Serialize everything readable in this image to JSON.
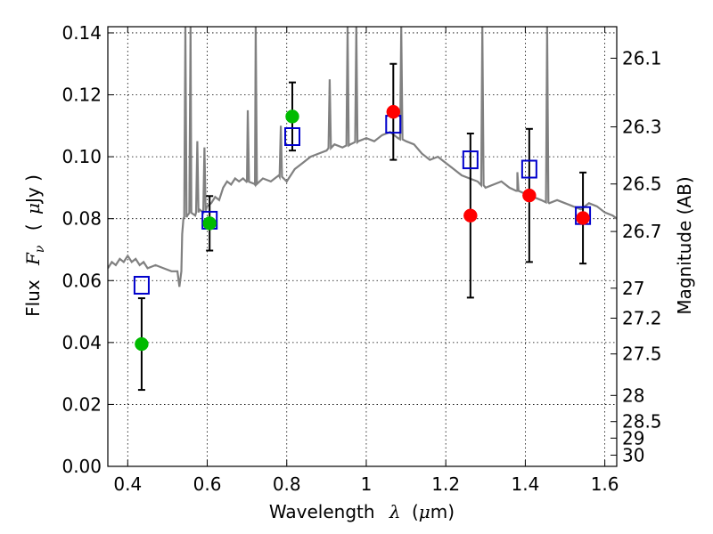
{
  "chart_data": {
    "type": "scatter",
    "xlabel": "Wavelength",
    "xlabel_symbol": "λ",
    "xlabel_unit_pre": "(",
    "xlabel_unit_mu": "μ",
    "xlabel_unit_post": "m)",
    "ylabel": "Flux",
    "ylabel_symbol": "F",
    "ylabel_sub": "ν",
    "ylabel_unit_pre": "(",
    "ylabel_unit_mu": "μ",
    "ylabel_unit_post": "Jy )",
    "y2label": "Magnitude (AB)",
    "xlim": [
      0.35,
      1.63
    ],
    "ylim": [
      0.0,
      0.142
    ],
    "grid": true,
    "x_ticks": [
      {
        "v": 0.4,
        "label": "0.4"
      },
      {
        "v": 0.6,
        "label": "0.6"
      },
      {
        "v": 0.8,
        "label": "0.8"
      },
      {
        "v": 1.0,
        "label": "1"
      },
      {
        "v": 1.2,
        "label": "1.2"
      },
      {
        "v": 1.4,
        "label": "1.4"
      },
      {
        "v": 1.6,
        "label": "1.6"
      }
    ],
    "y_ticks": [
      {
        "v": 0.0,
        "label": "0.00"
      },
      {
        "v": 0.02,
        "label": "0.02"
      },
      {
        "v": 0.04,
        "label": "0.04"
      },
      {
        "v": 0.06,
        "label": "0.06"
      },
      {
        "v": 0.08,
        "label": "0.08"
      },
      {
        "v": 0.1,
        "label": "0.10"
      },
      {
        "v": 0.12,
        "label": "0.12"
      },
      {
        "v": 0.14,
        "label": "0.14"
      }
    ],
    "y2_ticks": [
      {
        "mag": 26.1,
        "label": "26.1"
      },
      {
        "mag": 26.3,
        "label": "26.3"
      },
      {
        "mag": 26.5,
        "label": "26.5"
      },
      {
        "mag": 26.7,
        "label": "26.7"
      },
      {
        "mag": 27.0,
        "label": "27"
      },
      {
        "mag": 27.2,
        "label": "27.2"
      },
      {
        "mag": 27.5,
        "label": "27.5"
      },
      {
        "mag": 28.0,
        "label": "28"
      },
      {
        "mag": 28.5,
        "label": "28.5"
      },
      {
        "mag": 29.0,
        "label": "29"
      },
      {
        "mag": 30.0,
        "label": "30"
      }
    ],
    "colors": {
      "spectrum": "#808080",
      "observed_optical": "#00bb00",
      "observed_ir": "#ff0000",
      "model": "#0000cc",
      "errorbar": "#000000",
      "grid": "#000000"
    },
    "spectrum": [
      [
        0.35,
        0.064
      ],
      [
        0.36,
        0.066
      ],
      [
        0.37,
        0.065
      ],
      [
        0.38,
        0.067
      ],
      [
        0.39,
        0.066
      ],
      [
        0.4,
        0.068
      ],
      [
        0.41,
        0.066
      ],
      [
        0.42,
        0.067
      ],
      [
        0.43,
        0.065
      ],
      [
        0.44,
        0.066
      ],
      [
        0.45,
        0.064
      ],
      [
        0.47,
        0.065
      ],
      [
        0.49,
        0.064
      ],
      [
        0.51,
        0.063
      ],
      [
        0.525,
        0.063
      ],
      [
        0.53,
        0.058
      ],
      [
        0.535,
        0.063
      ],
      [
        0.537,
        0.075
      ],
      [
        0.54,
        0.08
      ],
      [
        0.55,
        0.081
      ],
      [
        0.56,
        0.082
      ],
      [
        0.57,
        0.081
      ],
      [
        0.58,
        0.083
      ],
      [
        0.59,
        0.082
      ],
      [
        0.6,
        0.084
      ],
      [
        0.61,
        0.085
      ],
      [
        0.62,
        0.087
      ],
      [
        0.63,
        0.086
      ],
      [
        0.64,
        0.09
      ],
      [
        0.65,
        0.092
      ],
      [
        0.66,
        0.091
      ],
      [
        0.67,
        0.093
      ],
      [
        0.68,
        0.092
      ],
      [
        0.69,
        0.093
      ],
      [
        0.7,
        0.092
      ],
      [
        0.72,
        0.091
      ],
      [
        0.74,
        0.093
      ],
      [
        0.76,
        0.092
      ],
      [
        0.78,
        0.094
      ],
      [
        0.8,
        0.092
      ],
      [
        0.82,
        0.096
      ],
      [
        0.84,
        0.098
      ],
      [
        0.86,
        0.1
      ],
      [
        0.88,
        0.101
      ],
      [
        0.9,
        0.102
      ],
      [
        0.92,
        0.104
      ],
      [
        0.94,
        0.103
      ],
      [
        0.96,
        0.104
      ],
      [
        0.98,
        0.105
      ],
      [
        1.0,
        0.106
      ],
      [
        1.02,
        0.105
      ],
      [
        1.04,
        0.107
      ],
      [
        1.06,
        0.108
      ],
      [
        1.08,
        0.106
      ],
      [
        1.1,
        0.105
      ],
      [
        1.12,
        0.104
      ],
      [
        1.14,
        0.101
      ],
      [
        1.16,
        0.099
      ],
      [
        1.18,
        0.1
      ],
      [
        1.2,
        0.098
      ],
      [
        1.22,
        0.096
      ],
      [
        1.24,
        0.094
      ],
      [
        1.26,
        0.093
      ],
      [
        1.28,
        0.092
      ],
      [
        1.3,
        0.09
      ],
      [
        1.32,
        0.091
      ],
      [
        1.34,
        0.092
      ],
      [
        1.36,
        0.09
      ],
      [
        1.38,
        0.089
      ],
      [
        1.4,
        0.088
      ],
      [
        1.42,
        0.087
      ],
      [
        1.44,
        0.086
      ],
      [
        1.46,
        0.085
      ],
      [
        1.48,
        0.086
      ],
      [
        1.5,
        0.085
      ],
      [
        1.52,
        0.084
      ],
      [
        1.54,
        0.083
      ],
      [
        1.56,
        0.085
      ],
      [
        1.58,
        0.084
      ],
      [
        1.6,
        0.082
      ],
      [
        1.62,
        0.081
      ],
      [
        1.63,
        0.08
      ]
    ],
    "emission_lines": [
      {
        "x": 0.545,
        "peak": 0.142
      },
      {
        "x": 0.558,
        "peak": 0.142
      },
      {
        "x": 0.575,
        "peak": 0.105
      },
      {
        "x": 0.593,
        "peak": 0.103
      },
      {
        "x": 0.702,
        "peak": 0.115
      },
      {
        "x": 0.722,
        "peak": 0.142
      },
      {
        "x": 0.785,
        "peak": 0.11
      },
      {
        "x": 0.908,
        "peak": 0.125
      },
      {
        "x": 0.953,
        "peak": 0.142
      },
      {
        "x": 0.975,
        "peak": 0.142
      },
      {
        "x": 1.088,
        "peak": 0.142
      },
      {
        "x": 1.292,
        "peak": 0.142
      },
      {
        "x": 1.38,
        "peak": 0.095
      },
      {
        "x": 1.455,
        "peak": 0.142
      }
    ],
    "series": [
      {
        "name": "observed_optical",
        "marker": "circle",
        "points": [
          {
            "x": 0.435,
            "y": 0.0395,
            "err": 0.0148
          },
          {
            "x": 0.606,
            "y": 0.0785,
            "err": 0.0088
          },
          {
            "x": 0.814,
            "y": 0.113,
            "err": 0.011
          }
        ]
      },
      {
        "name": "observed_ir",
        "marker": "circle",
        "points": [
          {
            "x": 1.068,
            "y": 0.1145,
            "err": 0.0155
          },
          {
            "x": 1.262,
            "y": 0.081,
            "err": 0.0265
          },
          {
            "x": 1.41,
            "y": 0.0875,
            "err": 0.0215
          },
          {
            "x": 1.545,
            "y": 0.0802,
            "err": 0.0147
          }
        ]
      },
      {
        "name": "model",
        "marker": "square",
        "points": [
          {
            "x": 0.435,
            "y": 0.0585
          },
          {
            "x": 0.606,
            "y": 0.0795
          },
          {
            "x": 0.814,
            "y": 0.1065
          },
          {
            "x": 1.068,
            "y": 0.1105
          },
          {
            "x": 1.262,
            "y": 0.099
          },
          {
            "x": 1.41,
            "y": 0.096
          },
          {
            "x": 1.545,
            "y": 0.081
          }
        ]
      }
    ]
  }
}
